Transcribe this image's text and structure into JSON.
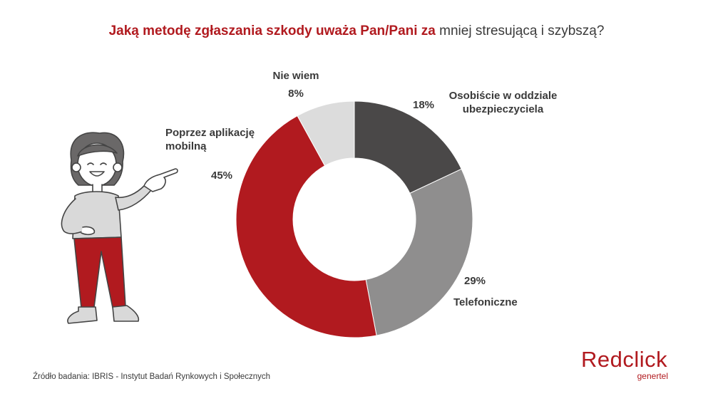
{
  "title": {
    "bold": "Jaką metodę zgłaszania szkody uważa Pan/Pani za",
    "regular": "mniej stresującą i szybszą?"
  },
  "chart_data": {
    "type": "pie",
    "variant": "donut",
    "title": "Jaką metodę zgłaszania szkody uważa Pan/Pani za mniej stresującą i szybszą?",
    "slices": [
      {
        "label": "Osobiście w oddziale ubezpieczyciela",
        "value": 18,
        "display": "18%",
        "color": "#4a4848"
      },
      {
        "label": "Telefoniczne",
        "value": 29,
        "display": "29%",
        "color": "#8f8e8e"
      },
      {
        "label": "Poprzez aplikację mobilną",
        "value": 45,
        "display": "45%",
        "color": "#b11a1f"
      },
      {
        "label": "Nie wiem",
        "value": 8,
        "display": "8%",
        "color": "#dcdcdc"
      }
    ]
  },
  "labels": {
    "osobiscie_line1": "Osobiście w oddziale",
    "osobiscie_line2": "ubezpieczyciela",
    "osobiscie_pct": "18%",
    "telefoniczne": "Telefoniczne",
    "telefoniczne_pct": "29%",
    "aplikacja_line1": "Poprzez aplikację",
    "aplikacja_line2": "mobilną",
    "aplikacja_pct": "45%",
    "niewiem": "Nie wiem",
    "niewiem_pct": "8%"
  },
  "source": "Źródło badania: IBRIS - Instytut Badań Rynkowych i Społecznych",
  "logo": {
    "brand": "Redclick",
    "sub": "genertel",
    "color": "#b11a1f"
  }
}
